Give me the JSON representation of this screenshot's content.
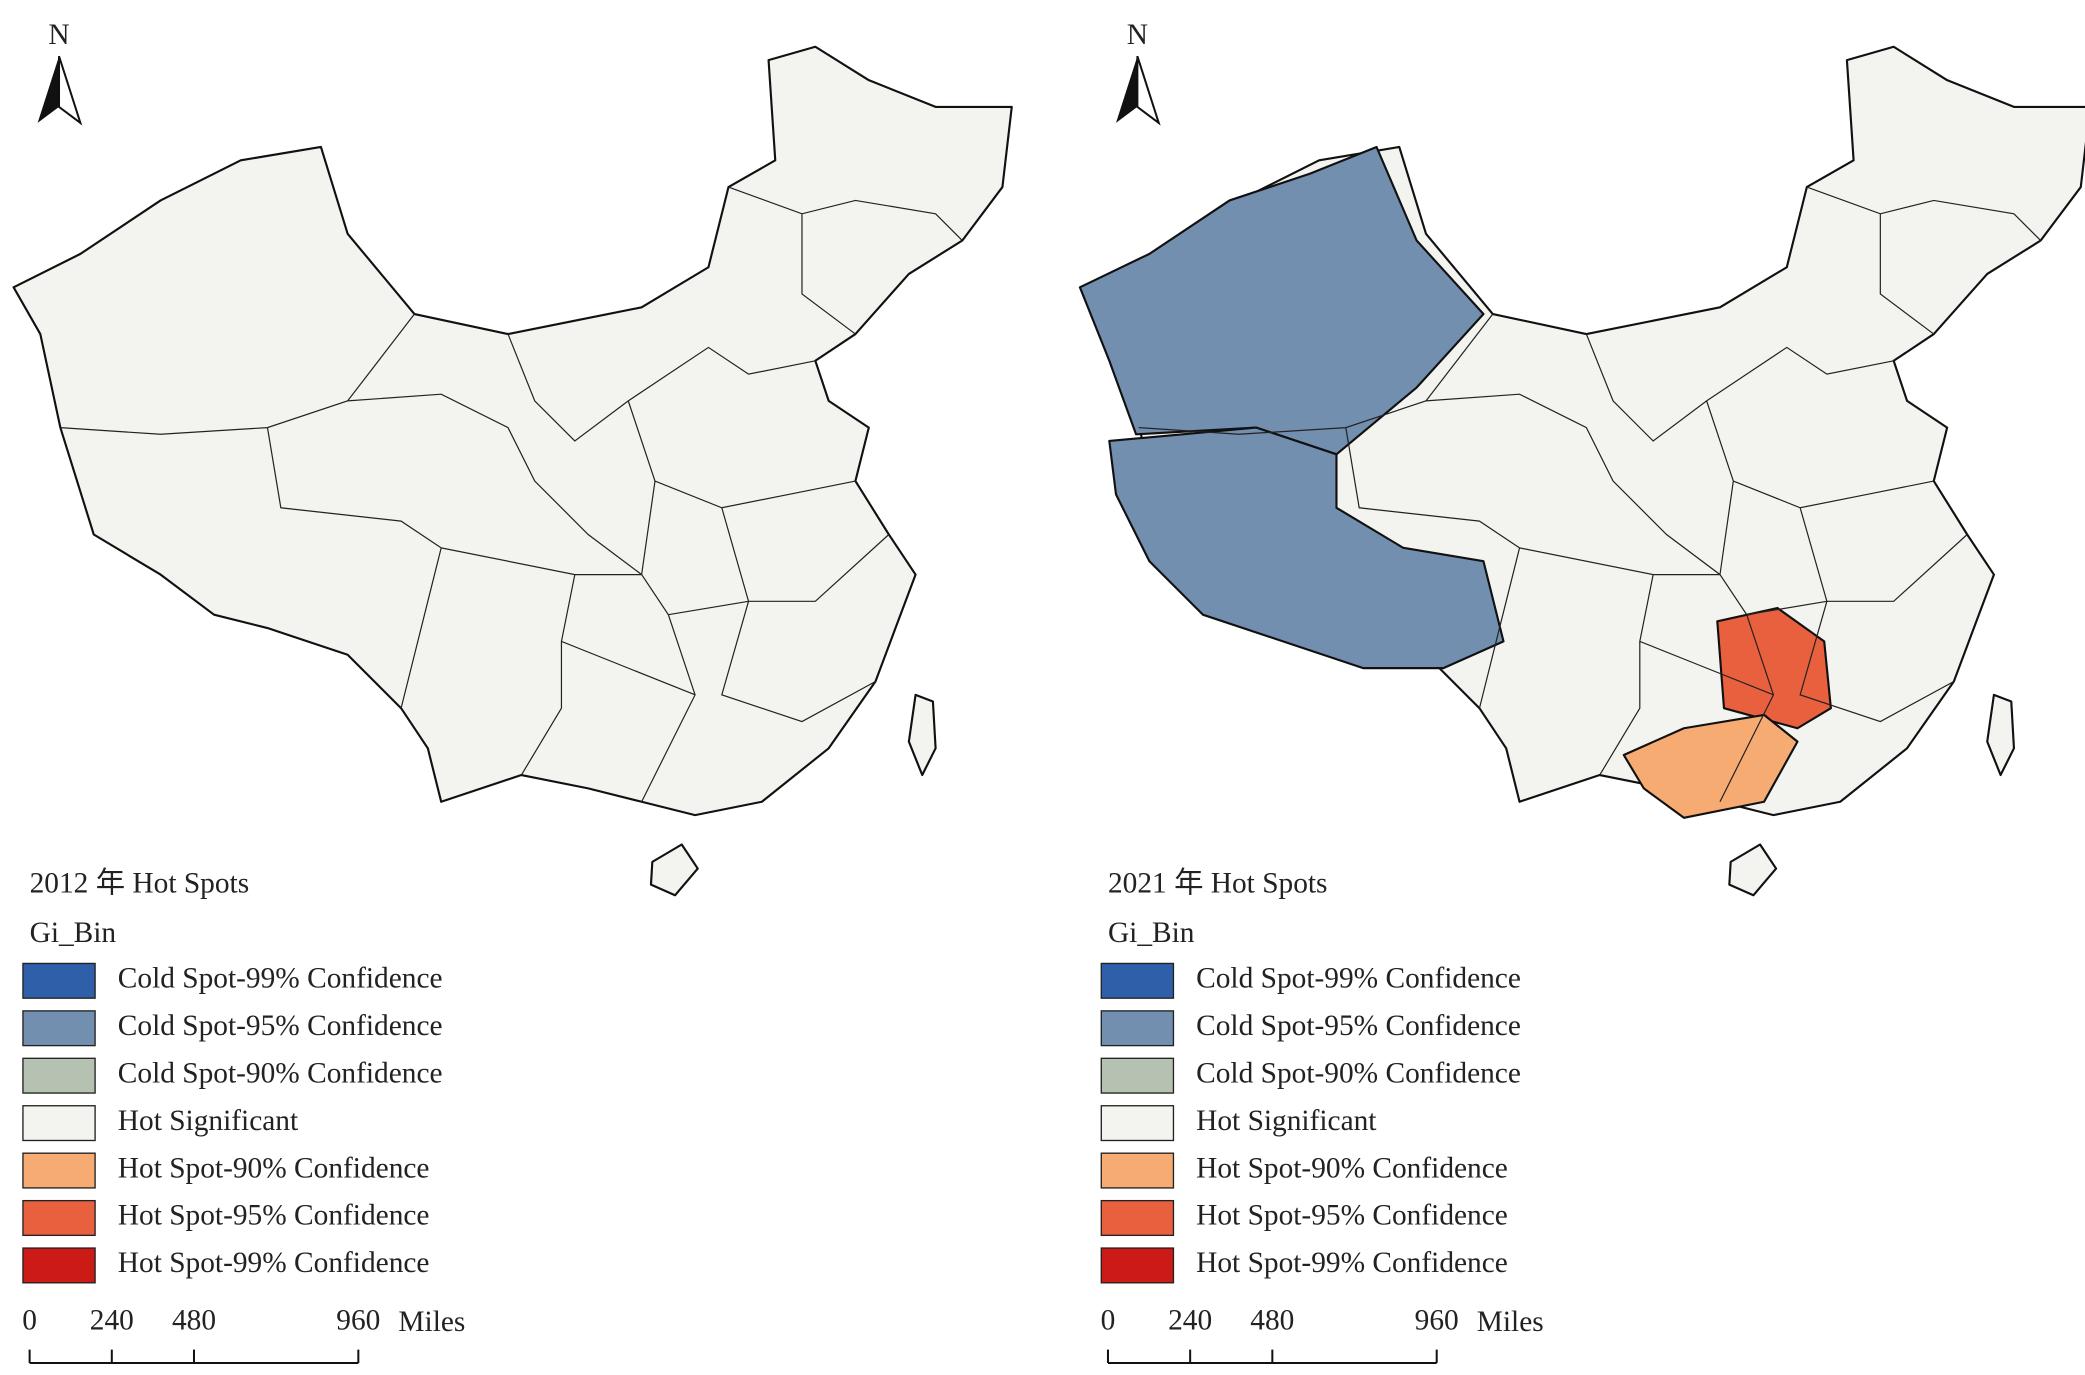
{
  "panels": [
    {
      "north": "N",
      "title": "2012 年 Hot Spots",
      "legend_title": "Gi_Bin",
      "legend": [
        {
          "label": "Cold Spot-99% Confidence",
          "color": "#2e5fa8"
        },
        {
          "label": "Cold Spot-95% Confidence",
          "color": "#738fb0"
        },
        {
          "label": "Cold Spot-90% Confidence",
          "color": "#b5c2b2"
        },
        {
          "label": "Hot Significant",
          "color": "#f3f4ef"
        },
        {
          "label": "Hot Spot-90% Confidence",
          "color": "#f6ab73"
        },
        {
          "label": "Hot Spot-95% Confidence",
          "color": "#e8603e"
        },
        {
          "label": "Hot Spot-99% Confidence",
          "color": "#cc1a16"
        }
      ],
      "scale_bar": {
        "ticks": [
          0,
          240,
          480,
          960
        ],
        "unit": "Miles"
      }
    },
    {
      "north": "N",
      "title": "2021 年 Hot Spots",
      "legend_title": "Gi_Bin",
      "legend": [
        {
          "label": "Cold Spot-99% Confidence",
          "color": "#2e5fa8"
        },
        {
          "label": "Cold Spot-95% Confidence",
          "color": "#738fb0"
        },
        {
          "label": "Cold Spot-90% Confidence",
          "color": "#b5c2b2"
        },
        {
          "label": "Hot Significant",
          "color": "#f3f4ef"
        },
        {
          "label": "Hot Spot-90% Confidence",
          "color": "#f6ab73"
        },
        {
          "label": "Hot Spot-95% Confidence",
          "color": "#e8603e"
        },
        {
          "label": "Hot Spot-99% Confidence",
          "color": "#cc1a16"
        }
      ],
      "scale_bar": {
        "ticks": [
          0,
          240,
          480,
          960
        ],
        "unit": "Miles"
      }
    }
  ]
}
